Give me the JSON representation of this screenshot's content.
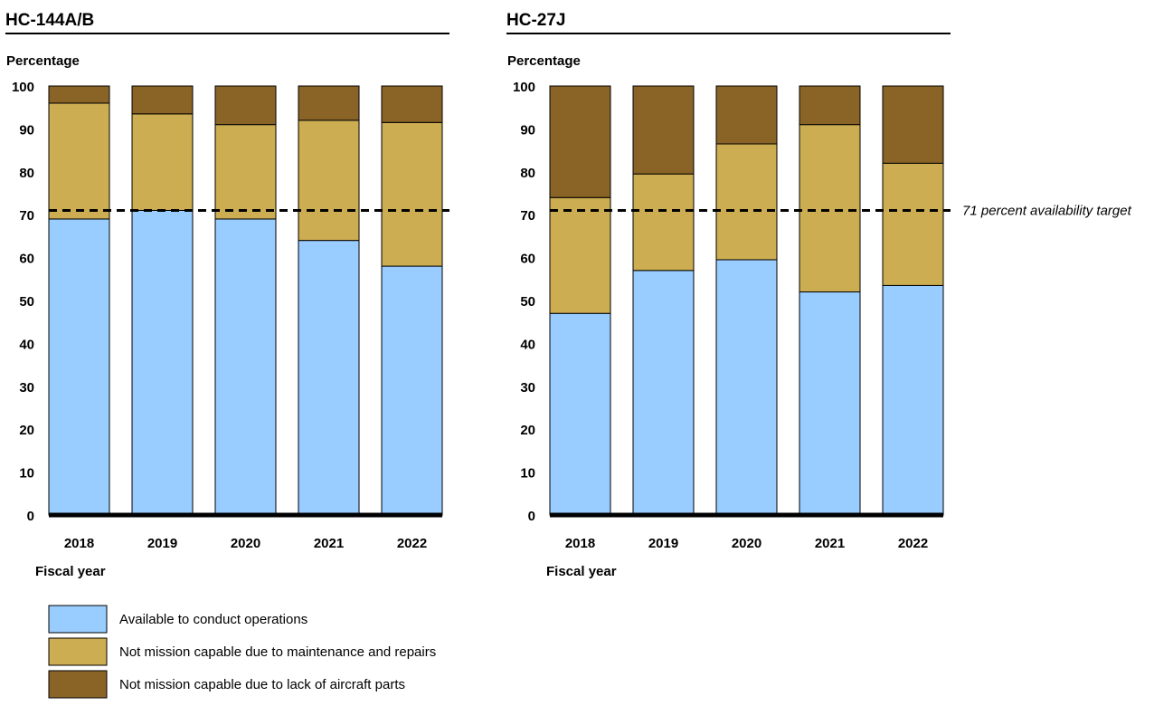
{
  "colors": {
    "available": "#99CCFF",
    "maintenance": "#CCAD52",
    "parts": "#8A6427",
    "target_line": "#000000"
  },
  "legend": [
    {
      "key": "available",
      "label": "Available to conduct operations"
    },
    {
      "key": "maintenance",
      "label": "Not mission capable due to maintenance and repairs"
    },
    {
      "key": "parts",
      "label": "Not mission capable due to lack of aircraft parts"
    }
  ],
  "target": {
    "value": 71,
    "label": "71 percent availability target"
  },
  "chart_data": [
    {
      "type": "bar",
      "stacked": true,
      "title": "HC-144A/B",
      "ylabel": "Percentage",
      "xlabel": "Fiscal year",
      "ylim": [
        0,
        100
      ],
      "yticks": [
        0,
        10,
        20,
        30,
        40,
        50,
        60,
        70,
        80,
        90,
        100
      ],
      "categories": [
        "2018",
        "2019",
        "2020",
        "2021",
        "2022"
      ],
      "series": [
        {
          "name": "Available to conduct operations",
          "key": "available",
          "values": [
            69,
            71,
            69,
            64,
            58
          ]
        },
        {
          "name": "Not mission capable due to maintenance and repairs",
          "key": "maintenance",
          "values": [
            27,
            22.5,
            22,
            28,
            33.5
          ]
        },
        {
          "name": "Not mission capable due to lack of aircraft parts",
          "key": "parts",
          "values": [
            4,
            6.5,
            9,
            8,
            8.5
          ]
        }
      ]
    },
    {
      "type": "bar",
      "stacked": true,
      "title": "HC-27J",
      "ylabel": "Percentage",
      "xlabel": "Fiscal year",
      "ylim": [
        0,
        100
      ],
      "yticks": [
        0,
        10,
        20,
        30,
        40,
        50,
        60,
        70,
        80,
        90,
        100
      ],
      "categories": [
        "2018",
        "2019",
        "2020",
        "2021",
        "2022"
      ],
      "series": [
        {
          "name": "Available to conduct operations",
          "key": "available",
          "values": [
            47,
            57,
            59.5,
            52,
            53.5
          ]
        },
        {
          "name": "Not mission capable due to maintenance and repairs",
          "key": "maintenance",
          "values": [
            27,
            22.5,
            27,
            39,
            28.5
          ]
        },
        {
          "name": "Not mission capable due to lack of aircraft parts",
          "key": "parts",
          "values": [
            26,
            20.5,
            13.5,
            9,
            18
          ]
        }
      ]
    }
  ]
}
